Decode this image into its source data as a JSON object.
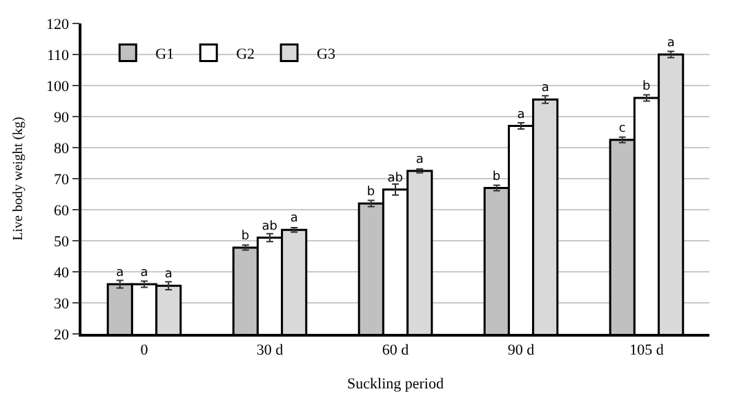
{
  "chart_data": {
    "type": "bar",
    "xlabel": "Suckling period",
    "ylabel": "Live body weight (kg)",
    "categories": [
      "0",
      "30 d",
      "60 d",
      "90 d",
      "105 d"
    ],
    "series": [
      {
        "name": "G1",
        "color": "#c0c0c0",
        "values": [
          36,
          47.8,
          62,
          67,
          82.5
        ],
        "errors": [
          1.2,
          0.8,
          1,
          0.9,
          0.9
        ],
        "value_labels": [
          "a",
          "b",
          "b",
          "b",
          "c"
        ]
      },
      {
        "name": "G2",
        "color": "#ffffff",
        "values": [
          36,
          51,
          66.5,
          87,
          96
        ],
        "errors": [
          1,
          1.3,
          1.8,
          1,
          1
        ],
        "value_labels": [
          "a",
          "ab",
          "ab",
          "a",
          "b"
        ]
      },
      {
        "name": "G3",
        "color": "#d9d9d9",
        "values": [
          35.5,
          53.5,
          72.5,
          95.5,
          110
        ],
        "errors": [
          1.3,
          0.7,
          0.6,
          1.2,
          1
        ],
        "value_labels": [
          "a",
          "a",
          "a",
          "a",
          "a"
        ]
      }
    ],
    "ylim": [
      20,
      120
    ],
    "yticks": [
      20,
      30,
      40,
      50,
      60,
      70,
      80,
      90,
      100,
      110,
      120
    ],
    "grid": "y",
    "legend": "top left"
  }
}
